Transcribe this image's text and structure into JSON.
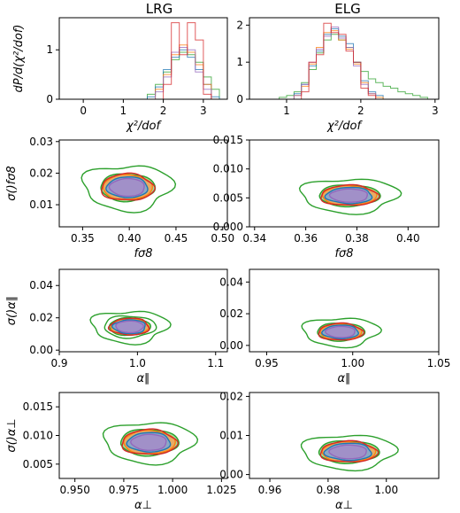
{
  "column_titles": [
    "LRG",
    "ELG"
  ],
  "colors": {
    "blue": "#1f77b4",
    "orange": "#ff7f0e",
    "green": "#2ca02c",
    "red": "#d62728",
    "purple": "#9467bd",
    "fill_green": "#8fd68a",
    "fill_orange": "#f5a25a",
    "fill_blue": "#7aa7d6",
    "fill_purple": "#a58cc8"
  },
  "chart_data": [
    {
      "id": "lrg_chi2",
      "type": "step-histogram",
      "xlabel": "χ²/dof",
      "ylabel": "dP/d(χ²/dof)",
      "xlim": [
        -0.6,
        3.6
      ],
      "ylim": [
        0,
        1.65
      ],
      "xticks": [
        0,
        1,
        2,
        3
      ],
      "xticklabels": [
        "0",
        "1",
        "2",
        "3"
      ],
      "yticks": [
        0,
        1
      ],
      "yticklabels": [
        "0",
        "1"
      ],
      "bin_edges": [
        1.6,
        1.8,
        2.0,
        2.2,
        2.4,
        2.6,
        2.8,
        3.0,
        3.2,
        3.4
      ],
      "series": [
        {
          "color": "green",
          "values": [
            0.1,
            0.3,
            0.55,
            0.8,
            0.95,
            0.9,
            0.75,
            0.45,
            0.2
          ]
        },
        {
          "color": "blue",
          "values": [
            0.05,
            0.25,
            0.6,
            0.85,
            1.0,
            0.85,
            0.6,
            0.3,
            0.05
          ]
        },
        {
          "color": "orange",
          "values": [
            0.0,
            0.2,
            0.5,
            0.9,
            1.1,
            0.95,
            0.7,
            0.3,
            0.0
          ]
        },
        {
          "color": "purple",
          "values": [
            0.0,
            0.15,
            0.45,
            0.95,
            1.05,
            1.0,
            0.55,
            0.2,
            0.0
          ]
        },
        {
          "color": "red",
          "values": [
            0.0,
            0.0,
            0.3,
            1.55,
            0.9,
            1.55,
            1.2,
            0.1,
            0.0
          ]
        }
      ]
    },
    {
      "id": "elg_chi2",
      "type": "step-histogram",
      "xlabel": "χ²/dof",
      "ylabel": "",
      "xlim": [
        0.5,
        3.05
      ],
      "ylim": [
        0,
        2.2
      ],
      "xticks": [
        1,
        2,
        3
      ],
      "xticklabels": [
        "1",
        "2",
        "3"
      ],
      "yticks": [
        0,
        1,
        2
      ],
      "yticklabels": [
        "0",
        "1",
        "2"
      ],
      "bin_edges": [
        0.9,
        1.0,
        1.1,
        1.2,
        1.3,
        1.4,
        1.5,
        1.6,
        1.7,
        1.8,
        1.9,
        2.0,
        2.1,
        2.2,
        2.3,
        2.4,
        2.5,
        2.6,
        2.7,
        2.8,
        2.9
      ],
      "series": [
        {
          "color": "green",
          "values": [
            0.05,
            0.1,
            0.2,
            0.45,
            0.8,
            1.25,
            1.6,
            1.75,
            1.6,
            1.4,
            1.0,
            0.75,
            0.55,
            0.45,
            0.35,
            0.3,
            0.2,
            0.15,
            0.1,
            0.05
          ]
        },
        {
          "color": "blue",
          "values": [
            0.0,
            0.0,
            0.15,
            0.4,
            0.9,
            1.3,
            1.75,
            1.9,
            1.7,
            1.5,
            1.0,
            0.5,
            0.2,
            0.1,
            0.0,
            0.0,
            0.0,
            0.0,
            0.0,
            0.0
          ]
        },
        {
          "color": "orange",
          "values": [
            0.0,
            0.0,
            0.1,
            0.35,
            0.95,
            1.4,
            1.8,
            1.85,
            1.6,
            1.35,
            0.95,
            0.45,
            0.15,
            0.05,
            0.0,
            0.0,
            0.0,
            0.0,
            0.0,
            0.0
          ]
        },
        {
          "color": "purple",
          "values": [
            0.0,
            0.0,
            0.1,
            0.4,
            1.0,
            1.35,
            1.7,
            1.95,
            1.65,
            1.4,
            0.9,
            0.4,
            0.15,
            0.0,
            0.0,
            0.0,
            0.0,
            0.0,
            0.0,
            0.0
          ]
        },
        {
          "color": "red",
          "values": [
            0.0,
            0.0,
            0.0,
            0.2,
            1.0,
            1.2,
            2.05,
            1.8,
            1.75,
            1.3,
            1.0,
            0.3,
            0.1,
            0.0,
            0.0,
            0.0,
            0.0,
            0.0,
            0.0,
            0.0
          ]
        }
      ]
    },
    {
      "id": "lrg_fs8",
      "type": "contour",
      "xlabel": "fσ8",
      "ylabel": "σ()fσ8",
      "xlim": [
        0.325,
        0.505
      ],
      "ylim": [
        0.003,
        0.0305
      ],
      "xticks": [
        0.35,
        0.4,
        0.45,
        0.5
      ],
      "xticklabels": [
        "0.35",
        "0.40",
        "0.45",
        "0.50"
      ],
      "yticks": [
        0.01,
        0.02,
        0.03
      ],
      "yticklabels": [
        "0.01",
        "0.02",
        "0.03"
      ],
      "center": [
        0.398,
        0.0155
      ],
      "radius": [
        0.022,
        0.0033
      ],
      "contours": [
        {
          "color": "green",
          "scale": 2.15,
          "fill": false,
          "jitter": 0.18
        },
        {
          "color": "green",
          "scale": 1.32,
          "fill": true,
          "jitter": 0.07
        },
        {
          "color": "orange",
          "scale": 1.2,
          "fill": true,
          "jitter": 0.05
        },
        {
          "color": "red",
          "scale": 1.28,
          "fill": false,
          "jitter": 0.1
        },
        {
          "color": "blue",
          "scale": 1.0,
          "fill": true,
          "jitter": 0.06
        },
        {
          "color": "purple",
          "scale": 0.85,
          "fill": true,
          "jitter": 0.05
        }
      ]
    },
    {
      "id": "elg_fs8",
      "type": "contour",
      "xlabel": "fσ8",
      "ylabel": "",
      "xlim": [
        0.338,
        0.412
      ],
      "ylim": [
        0.0,
        0.015
      ],
      "xticks": [
        0.34,
        0.36,
        0.38,
        0.4
      ],
      "xticklabels": [
        "0.34",
        "0.36",
        "0.38",
        "0.40"
      ],
      "yticks": [
        0.0,
        0.005,
        0.01,
        0.015
      ],
      "yticklabels": [
        "0.000",
        "0.005",
        "0.010",
        "0.015"
      ],
      "center": [
        0.377,
        0.0054
      ],
      "radius": [
        0.009,
        0.0014
      ],
      "contours": [
        {
          "color": "green",
          "scale": 2.1,
          "fill": false,
          "jitter": 0.16
        },
        {
          "color": "green",
          "scale": 1.32,
          "fill": true,
          "jitter": 0.07
        },
        {
          "color": "orange",
          "scale": 1.18,
          "fill": true,
          "jitter": 0.05
        },
        {
          "color": "red",
          "scale": 1.25,
          "fill": false,
          "jitter": 0.1
        },
        {
          "color": "blue",
          "scale": 1.0,
          "fill": true,
          "jitter": 0.08
        },
        {
          "color": "purple",
          "scale": 0.82,
          "fill": true,
          "jitter": 0.05
        }
      ]
    },
    {
      "id": "lrg_apar",
      "type": "contour",
      "xlabel": "α∥",
      "ylabel": "σ()α∥",
      "xlim": [
        0.9,
        1.115
      ],
      "ylim": [
        -0.001,
        0.05
      ],
      "xticks": [
        0.9,
        1.0,
        1.1
      ],
      "xticklabels": [
        "0.9",
        "1.0",
        "1.1"
      ],
      "yticks": [
        0.0,
        0.02,
        0.04
      ],
      "yticklabels": [
        "0.00",
        "0.02",
        "0.04"
      ],
      "center": [
        0.99,
        0.0145
      ],
      "radius": [
        0.022,
        0.0045
      ],
      "contours": [
        {
          "color": "green",
          "scale": 2.2,
          "fill": false,
          "jitter": 0.18
        },
        {
          "color": "green",
          "scale": 1.5,
          "fill": false,
          "jitter": 0.1
        },
        {
          "color": "green",
          "scale": 1.2,
          "fill": true,
          "jitter": 0.06
        },
        {
          "color": "orange",
          "scale": 1.1,
          "fill": true,
          "jitter": 0.05
        },
        {
          "color": "red",
          "scale": 1.15,
          "fill": false,
          "jitter": 0.1
        },
        {
          "color": "blue",
          "scale": 0.95,
          "fill": true,
          "jitter": 0.08
        },
        {
          "color": "purple",
          "scale": 0.8,
          "fill": true,
          "jitter": 0.05
        }
      ]
    },
    {
      "id": "elg_apar",
      "type": "contour",
      "xlabel": "α∥",
      "ylabel": "",
      "xlim": [
        0.94,
        1.05
      ],
      "ylim": [
        -0.004,
        0.048
      ],
      "xticks": [
        0.95,
        1.0,
        1.05
      ],
      "xticklabels": [
        "0.95",
        "1.00",
        "1.05"
      ],
      "yticks": [
        0.0,
        0.02,
        0.04
      ],
      "yticklabels": [
        "0.00",
        "0.02",
        "0.04"
      ],
      "center": [
        0.993,
        0.0085
      ],
      "radius": [
        0.011,
        0.0045
      ],
      "contours": [
        {
          "color": "green",
          "scale": 2.0,
          "fill": false,
          "jitter": 0.16
        },
        {
          "color": "green",
          "scale": 1.25,
          "fill": true,
          "jitter": 0.07
        },
        {
          "color": "orange",
          "scale": 1.1,
          "fill": true,
          "jitter": 0.05
        },
        {
          "color": "red",
          "scale": 1.18,
          "fill": false,
          "jitter": 0.1
        },
        {
          "color": "blue",
          "scale": 0.95,
          "fill": true,
          "jitter": 0.07
        },
        {
          "color": "purple",
          "scale": 0.78,
          "fill": true,
          "jitter": 0.05
        }
      ]
    },
    {
      "id": "lrg_aperp",
      "type": "contour",
      "xlabel": "α⊥",
      "ylabel": "σ()α⊥",
      "xlim": [
        0.942,
        1.028
      ],
      "ylim": [
        0.0025,
        0.0175
      ],
      "xticks": [
        0.95,
        0.975,
        1.0,
        1.025
      ],
      "xticklabels": [
        "0.950",
        "0.975",
        "1.000",
        "1.025"
      ],
      "yticks": [
        0.005,
        0.01,
        0.015
      ],
      "yticklabels": [
        "0.005",
        "0.010",
        "0.015"
      ],
      "center": [
        0.988,
        0.0088
      ],
      "radius": [
        0.011,
        0.0017
      ],
      "contours": [
        {
          "color": "green",
          "scale": 2.1,
          "fill": false,
          "jitter": 0.15
        },
        {
          "color": "green",
          "scale": 1.35,
          "fill": true,
          "jitter": 0.07
        },
        {
          "color": "orange",
          "scale": 1.2,
          "fill": true,
          "jitter": 0.05
        },
        {
          "color": "red",
          "scale": 1.28,
          "fill": false,
          "jitter": 0.1
        },
        {
          "color": "blue",
          "scale": 1.0,
          "fill": true,
          "jitter": 0.07
        },
        {
          "color": "purple",
          "scale": 0.82,
          "fill": true,
          "jitter": 0.05
        }
      ]
    },
    {
      "id": "elg_aperp",
      "type": "contour",
      "xlabel": "α⊥",
      "ylabel": "",
      "xlim": [
        0.953,
        1.018
      ],
      "ylim": [
        -0.001,
        0.021
      ],
      "xticks": [
        0.96,
        0.98,
        1.0
      ],
      "xticklabels": [
        "0.96",
        "0.98",
        "1.00"
      ],
      "yticks": [
        0.0,
        0.01,
        0.02
      ],
      "yticklabels": [
        "0.00",
        "0.01",
        "0.02"
      ],
      "center": [
        0.987,
        0.0058
      ],
      "radius": [
        0.008,
        0.0022
      ],
      "contours": [
        {
          "color": "green",
          "scale": 2.0,
          "fill": false,
          "jitter": 0.14
        },
        {
          "color": "green",
          "scale": 1.3,
          "fill": true,
          "jitter": 0.07
        },
        {
          "color": "orange",
          "scale": 1.15,
          "fill": true,
          "jitter": 0.05
        },
        {
          "color": "red",
          "scale": 1.22,
          "fill": false,
          "jitter": 0.1
        },
        {
          "color": "blue",
          "scale": 1.0,
          "fill": true,
          "jitter": 0.08
        },
        {
          "color": "purple",
          "scale": 0.8,
          "fill": true,
          "jitter": 0.05
        }
      ]
    }
  ]
}
